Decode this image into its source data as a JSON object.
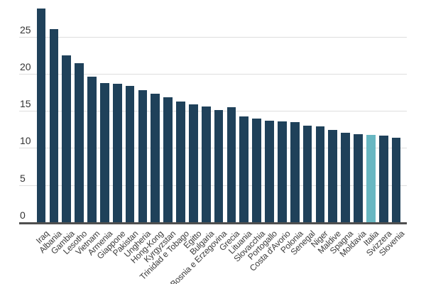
{
  "chart_data": {
    "type": "bar",
    "categories": [
      "Iraq",
      "Albania",
      "Gambia",
      "Lesotho",
      "Vietnam",
      "Armenia",
      "Giappone",
      "Pakistan",
      "Ungheria",
      "Hong-Kong",
      "Kyrgyzstan",
      "Trinidad e Tobago",
      "Egitto",
      "Bulgaria",
      "Bosnia e Erzegovina",
      "Grecia",
      "Lituania",
      "Slovacchia",
      "Portogallo",
      "Costa d'Avorio",
      "Polonia",
      "Senegal",
      "Niger",
      "Maldive",
      "Spagna",
      "Moldavia",
      "Italia",
      "Svizzera",
      "Slovenia"
    ],
    "values": [
      28.8,
      26.0,
      22.5,
      21.4,
      19.6,
      18.7,
      18.6,
      18.4,
      17.8,
      17.3,
      16.8,
      16.3,
      15.9,
      15.6,
      15.1,
      15.5,
      14.2,
      14.0,
      13.7,
      13.6,
      13.5,
      13.0,
      12.9,
      12.4,
      12.0,
      11.9,
      11.8,
      11.7,
      11.4
    ],
    "highlighted_category": "Italia",
    "y_ticks": [
      0,
      5,
      10,
      15,
      20,
      25
    ],
    "ylim": [
      0,
      29
    ],
    "grid": true,
    "legend_position": "none",
    "x_label_rotation_deg": -45,
    "bar_color": "#1f415a",
    "highlight_color": "#68b7c2",
    "gridline_color": "#dedede",
    "axis_line_color": "#4f4f4f",
    "tick_text_color": "#333333",
    "category_text_color": "#3c3c3c"
  }
}
